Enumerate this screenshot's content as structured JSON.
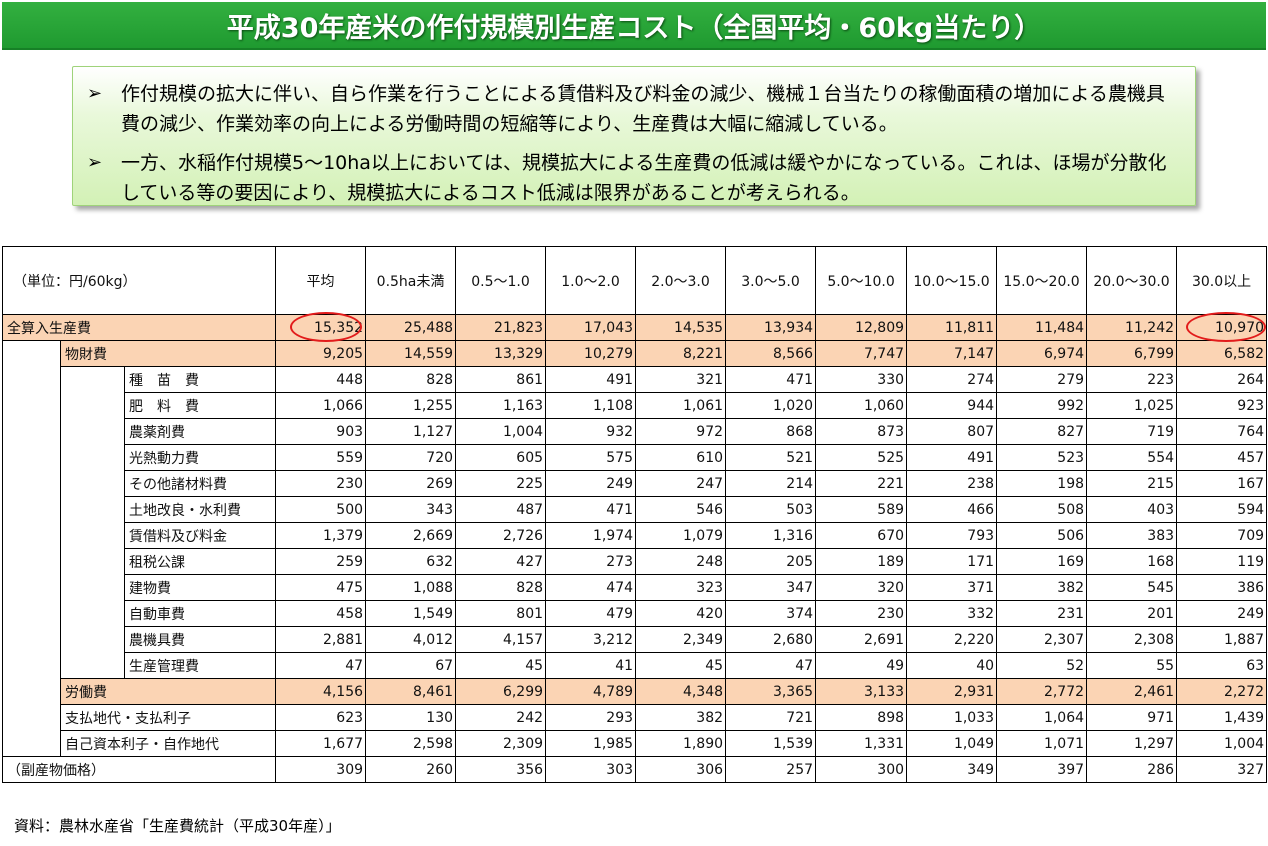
{
  "title": "平成30年産米の作付規模別生産コスト（全国平均・60kg当たり）",
  "bullets": [
    {
      "mark": "➢",
      "text": "作付規模の拡大に伴い、自ら作業を行うことによる賃借料及び料金の減少、機械１台当たりの稼働面積の増加による農機具費の減少、作業効率の向上による労働時間の短縮等により、生産費は大幅に縮減している。"
    },
    {
      "mark": "➢",
      "text": "一方、水稲作付規模5～10ha以上においては、規模拡大による生産費の低減は緩やかになっている。これは、ほ場が分散化している等の要因により、規模拡大によるコスト低減は限界があることが考えられる。"
    }
  ],
  "table": {
    "unit_label": "（単位：円/60kg）",
    "columns": [
      "平均",
      "0.5ha未満",
      "0.5～1.0",
      "1.0～2.0",
      "2.0～3.0",
      "3.0～5.0",
      "5.0～10.0",
      "10.0～15.0",
      "15.0～20.0",
      "20.0～30.0",
      "30.0以上"
    ],
    "rows": [
      {
        "label": "全算入生産費",
        "values": [
          "15,352",
          "25,488",
          "21,823",
          "17,043",
          "14,535",
          "13,934",
          "12,809",
          "11,811",
          "11,484",
          "11,242",
          "10,970"
        ]
      },
      {
        "label": "物財費",
        "values": [
          "9,205",
          "14,559",
          "13,329",
          "10,279",
          "8,221",
          "8,566",
          "7,747",
          "7,147",
          "6,974",
          "6,799",
          "6,582"
        ]
      },
      {
        "label": "種　苗　費",
        "values": [
          "448",
          "828",
          "861",
          "491",
          "321",
          "471",
          "330",
          "274",
          "279",
          "223",
          "264"
        ]
      },
      {
        "label": "肥　料　費",
        "values": [
          "1,066",
          "1,255",
          "1,163",
          "1,108",
          "1,061",
          "1,020",
          "1,060",
          "944",
          "992",
          "1,025",
          "923"
        ]
      },
      {
        "label": "農薬剤費",
        "values": [
          "903",
          "1,127",
          "1,004",
          "932",
          "972",
          "868",
          "873",
          "807",
          "827",
          "719",
          "764"
        ]
      },
      {
        "label": "光熱動力費",
        "values": [
          "559",
          "720",
          "605",
          "575",
          "610",
          "521",
          "525",
          "491",
          "523",
          "554",
          "457"
        ]
      },
      {
        "label": "その他諸材料費",
        "values": [
          "230",
          "269",
          "225",
          "249",
          "247",
          "214",
          "221",
          "238",
          "198",
          "215",
          "167"
        ]
      },
      {
        "label": "土地改良・水利費",
        "values": [
          "500",
          "343",
          "487",
          "471",
          "546",
          "503",
          "589",
          "466",
          "508",
          "403",
          "594"
        ]
      },
      {
        "label": "賃借料及び料金",
        "values": [
          "1,379",
          "2,669",
          "2,726",
          "1,974",
          "1,079",
          "1,316",
          "670",
          "793",
          "506",
          "383",
          "709"
        ]
      },
      {
        "label": "租税公課",
        "values": [
          "259",
          "632",
          "427",
          "273",
          "248",
          "205",
          "189",
          "171",
          "169",
          "168",
          "119"
        ]
      },
      {
        "label": "建物費",
        "values": [
          "475",
          "1,088",
          "828",
          "474",
          "323",
          "347",
          "320",
          "371",
          "382",
          "545",
          "386"
        ]
      },
      {
        "label": "自動車費",
        "values": [
          "458",
          "1,549",
          "801",
          "479",
          "420",
          "374",
          "230",
          "332",
          "231",
          "201",
          "249"
        ]
      },
      {
        "label": "農機具費",
        "values": [
          "2,881",
          "4,012",
          "4,157",
          "3,212",
          "2,349",
          "2,680",
          "2,691",
          "2,220",
          "2,307",
          "2,308",
          "1,887"
        ]
      },
      {
        "label": "生産管理費",
        "values": [
          "47",
          "67",
          "45",
          "41",
          "45",
          "47",
          "49",
          "40",
          "52",
          "55",
          "63"
        ]
      },
      {
        "label": "労働費",
        "values": [
          "4,156",
          "8,461",
          "6,299",
          "4,789",
          "4,348",
          "3,365",
          "3,133",
          "2,931",
          "2,772",
          "2,461",
          "2,272"
        ]
      },
      {
        "label": "支払地代・支払利子",
        "values": [
          "623",
          "130",
          "242",
          "293",
          "382",
          "721",
          "898",
          "1,033",
          "1,064",
          "971",
          "1,439"
        ]
      },
      {
        "label": "自己資本利子・自作地代",
        "values": [
          "1,677",
          "2,598",
          "2,309",
          "1,985",
          "1,890",
          "1,539",
          "1,331",
          "1,049",
          "1,071",
          "1,297",
          "1,004"
        ]
      },
      {
        "label": "（副産物価格）",
        "values": [
          "309",
          "260",
          "356",
          "303",
          "306",
          "257",
          "300",
          "349",
          "397",
          "286",
          "327"
        ]
      }
    ]
  },
  "source": "資料：農林水産省「生産費統計（平成30年産）」",
  "colors": {
    "title_green": "#1f9a30",
    "highlight_orange": "#fbd4b4",
    "circle_red": "#e21b1b"
  }
}
